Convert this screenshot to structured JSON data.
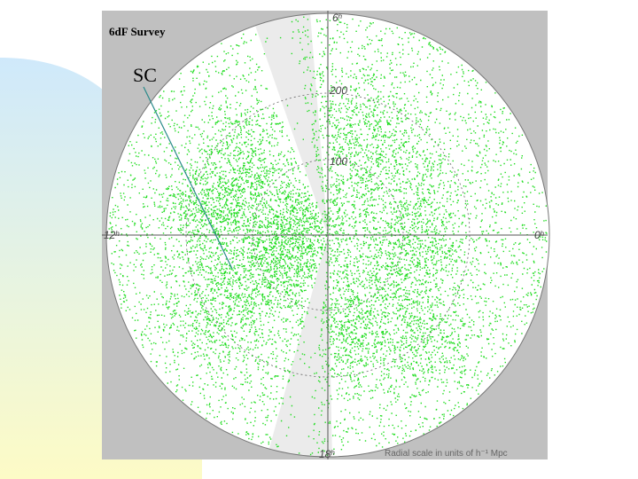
{
  "title": "6dF Survey",
  "annotation": "SC",
  "hour_labels": {
    "top": "6ʰ",
    "left": "12ʰ",
    "right": "0ʰ",
    "bottom": "18ʰ"
  },
  "radial_labels": [
    "200",
    "100"
  ],
  "caption": "Radial scale in units of h⁻¹ Mpc"
}
